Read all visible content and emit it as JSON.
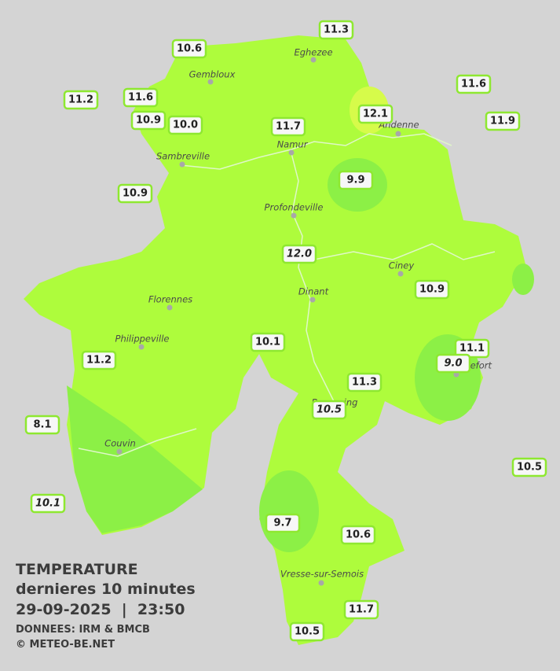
{
  "title": "TEMPERATURE",
  "subtitle": "dernieres 10 minutes",
  "datetime": "29-09-2025  |  23:50",
  "source": "DONNEES: IRM & BMCB",
  "copyright": "© METEO-BE.NET",
  "cities": [
    "Eghezee",
    "Gembloux",
    "Andenne",
    "Namur",
    "Sambreville",
    "Profondeville",
    "Ciney",
    "Dinant",
    "Florennes",
    "Philippeville",
    "Rochefort",
    "Beauraing",
    "Couvin",
    "Vresse-sur-Semois"
  ],
  "stations": [
    {
      "value": 11.3
    },
    {
      "value": 10.6
    },
    {
      "value": 11.6
    },
    {
      "value": 11.2
    },
    {
      "value": 11.6
    },
    {
      "value": 12.1
    },
    {
      "value": 10.9
    },
    {
      "value": {
        "value": 10,
        "label": "10.0"
      }
    },
    {
      "value": 11.7
    },
    {
      "value": 11.9
    },
    {
      "value": 9.9
    },
    {
      "value": 10.9
    },
    {
      "value": {
        "value": 12,
        "label": "12.0"
      },
      "italic": true
    },
    {
      "value": 10.9
    },
    {
      "value": 10.1
    },
    {
      "value": 11.1
    },
    {
      "value": {
        "value": 9,
        "label": "9.0"
      },
      "italic": true
    },
    {
      "value": 11.2
    },
    {
      "value": 11.3
    },
    {
      "value": 10.5,
      "italic": true
    },
    {
      "value": 8.1
    },
    {
      "value": 10.5
    },
    {
      "value": 10.1,
      "italic": true
    },
    {
      "value": 9.7
    },
    {
      "value": 10.6
    },
    {
      "value": 11.7
    },
    {
      "value": 10.5
    }
  ]
}
